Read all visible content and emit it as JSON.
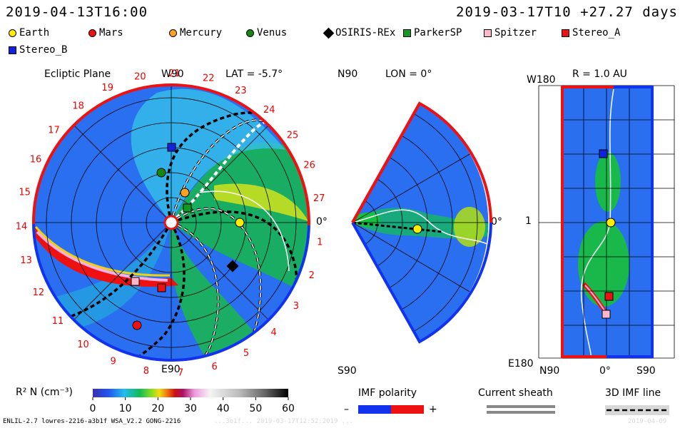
{
  "header": {
    "left_timestamp": "2019-04-13T16:00",
    "right_timestamp": "2019-03-17T10 +27.27 days"
  },
  "legend": {
    "items": [
      {
        "label": "Earth",
        "color": "#ffee00",
        "shape": "circle"
      },
      {
        "label": "Mars",
        "color": "#ee1111",
        "shape": "circle"
      },
      {
        "label": "Mercury",
        "color": "#ffa020",
        "shape": "circle"
      },
      {
        "label": "Venus",
        "color": "#118811",
        "shape": "circle"
      },
      {
        "label": "OSIRIS-REx",
        "color": "#000000",
        "shape": "diamond"
      },
      {
        "label": "ParkerSP",
        "color": "#119922",
        "shape": "square"
      },
      {
        "label": "Spitzer",
        "color": "#ffb8c8",
        "shape": "square"
      },
      {
        "label": "Stereo_A",
        "color": "#ee1111",
        "shape": "square"
      },
      {
        "label": "Stereo_B",
        "color": "#1122dd",
        "shape": "square"
      }
    ]
  },
  "panels": {
    "ecliptic": {
      "title": "Ecliptic Plane",
      "lat_label": "LAT = -5.7°",
      "top_label": "W90",
      "bottom_label": "E90",
      "right_label": "0°",
      "day_labels": [
        "1",
        "2",
        "3",
        "4",
        "5",
        "6",
        "7",
        "8",
        "9",
        "10",
        "11",
        "12",
        "13",
        "14",
        "15",
        "16",
        "17",
        "18",
        "19",
        "20",
        "21",
        "22",
        "23",
        "24",
        "25",
        "26",
        "27"
      ]
    },
    "meridional": {
      "top_label": "N90",
      "lon_label": "LON = 0°",
      "bottom_label": "S90",
      "right_label": "0°"
    },
    "radial": {
      "title": "R = 1.0 AU",
      "top_left_label": "W180",
      "bottom_left_label": "E180",
      "mid_left_label": "1",
      "bottom_n": "N90",
      "bottom_mid": "0°",
      "bottom_s": "S90"
    }
  },
  "colorbar": {
    "label": "R² N (cm⁻³)",
    "ticks": [
      "0",
      "10",
      "20",
      "30",
      "40",
      "50",
      "60"
    ]
  },
  "imf_polarity": {
    "title": "IMF polarity",
    "minus": "–",
    "plus": "+",
    "neg_color": "#1133ee",
    "pos_color": "#ee1111"
  },
  "current_sheath": {
    "title": "Current sheath"
  },
  "imf_line": {
    "title": "3D IMF line"
  },
  "footer": {
    "model": "ENLIL-2.7 lowres-2216-a3b1f WSA_V2.2 GONG-2216",
    "faded": "...3b1f... 2019-03-17T12:52:2019 ...",
    "date": "2019-04-09"
  }
}
